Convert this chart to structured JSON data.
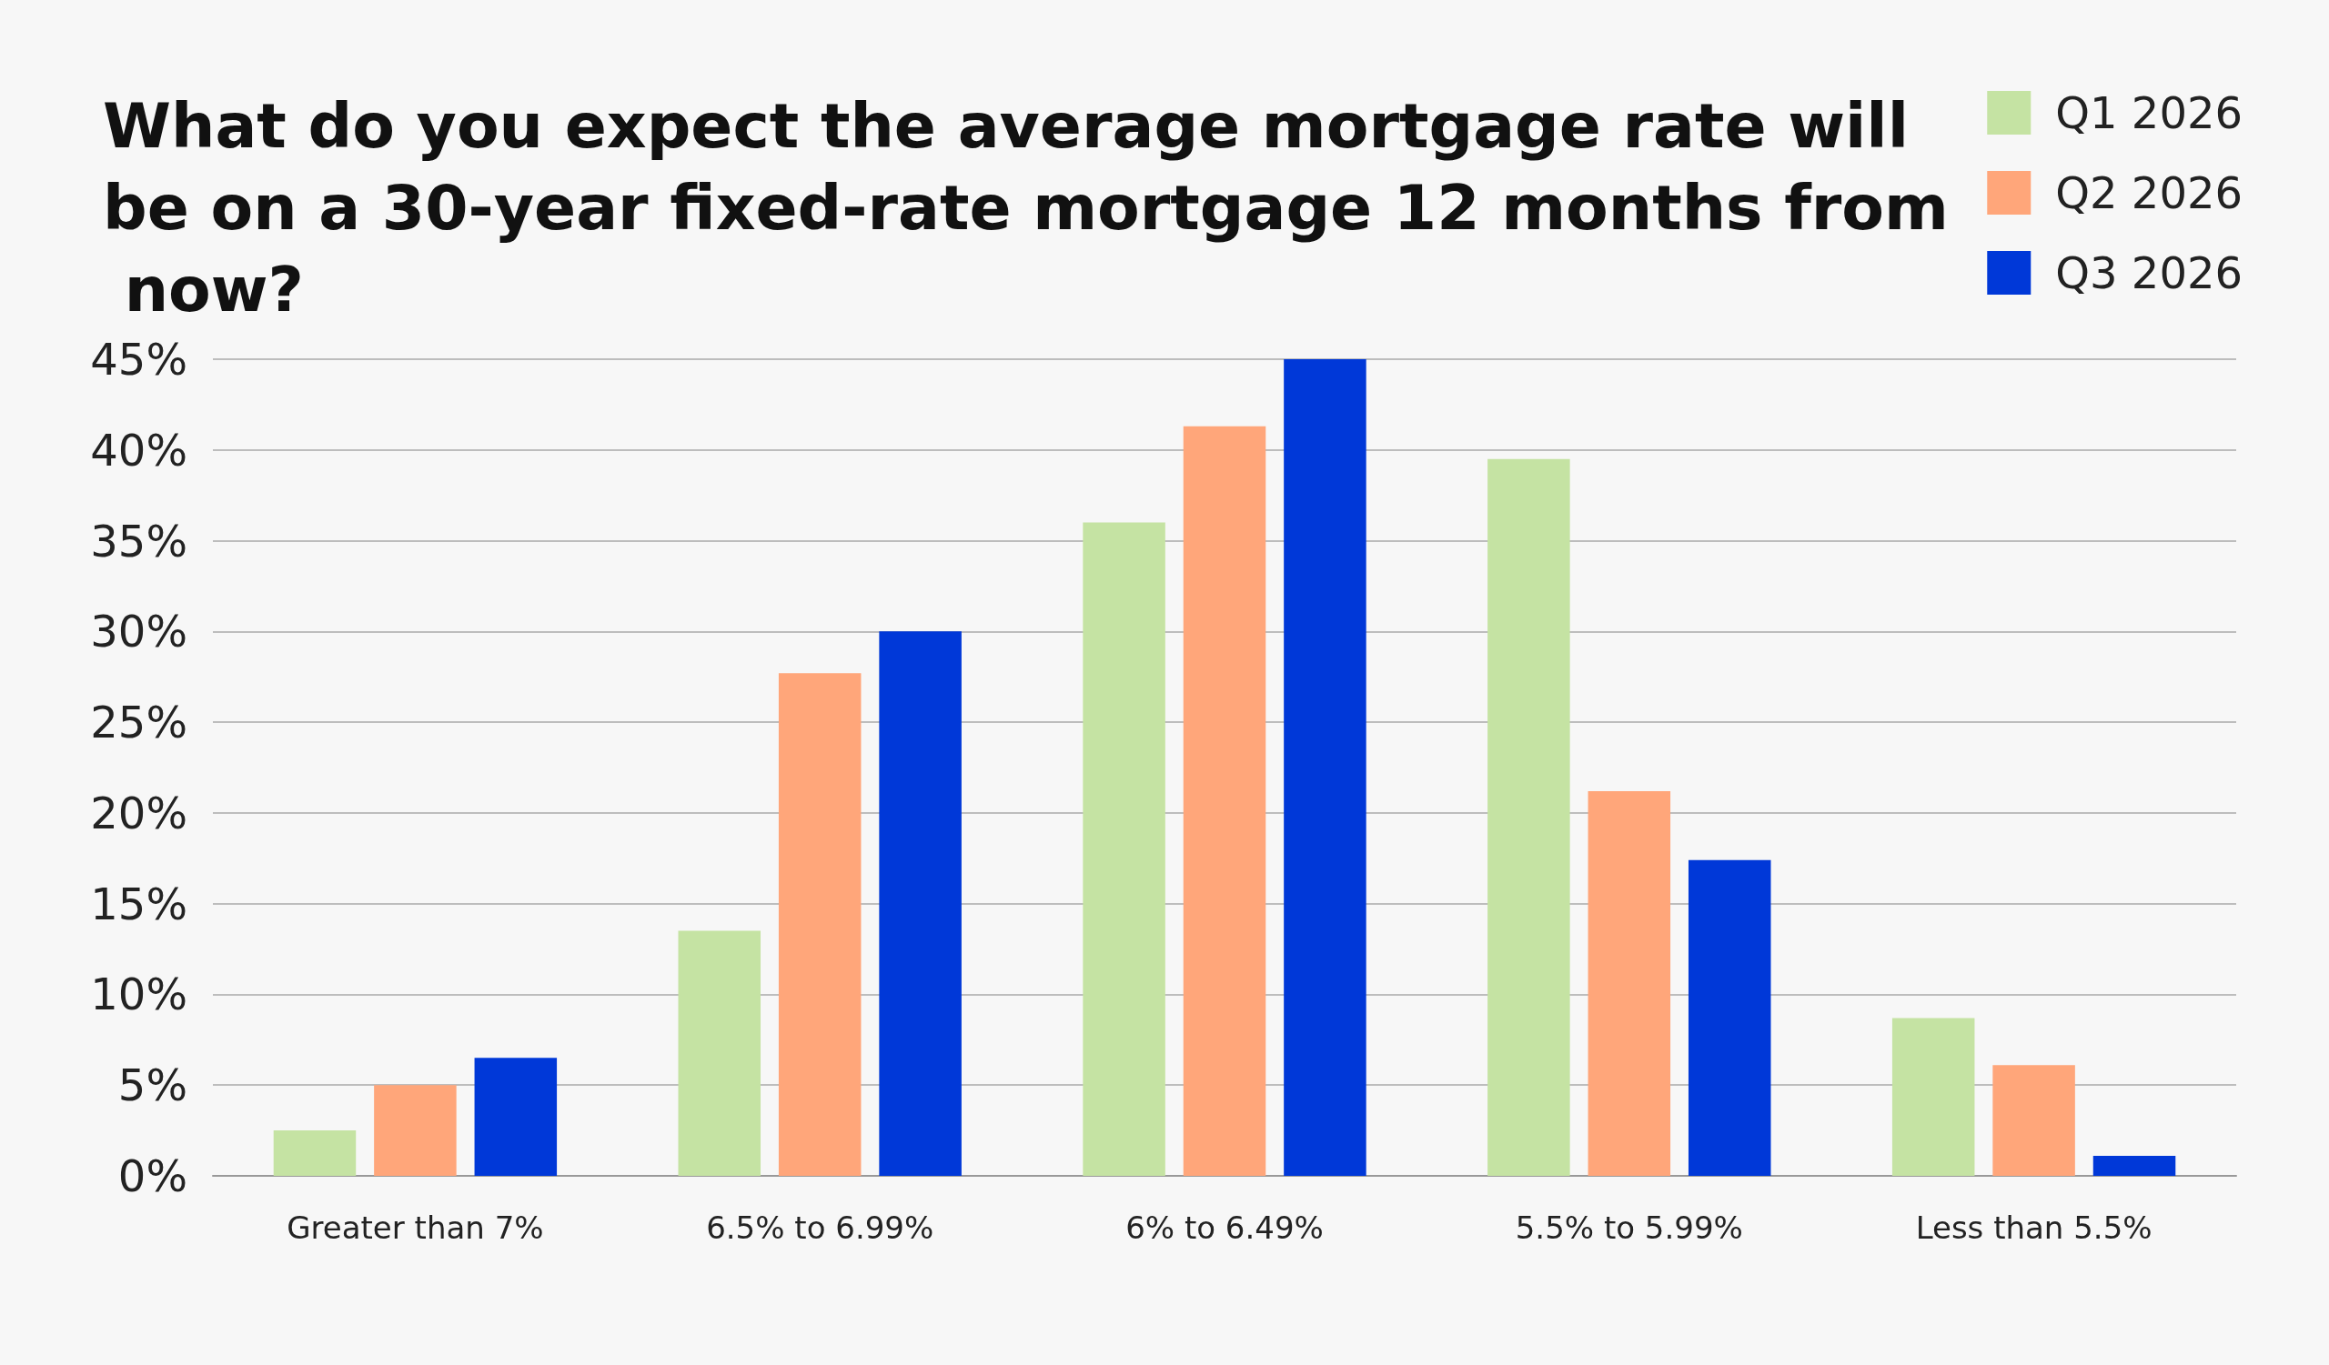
{
  "chart_data": {
    "type": "bar",
    "title": "What do you expect the average mortgage rate will be on a 30-year fixed-rate mortgage 12 months from now?",
    "categories": [
      "Greater than 7%",
      "6.5% to 6.99%",
      "6% to 6.49%",
      "5.5% to 5.99%",
      "Less than 5.5%"
    ],
    "series": [
      {
        "name": "Q1 2026",
        "color": "#c5e3a3",
        "values": [
          2.5,
          13.5,
          36.0,
          39.5,
          8.7
        ]
      },
      {
        "name": "Q2 2026",
        "color": "#ffa67a",
        "values": [
          5.0,
          27.7,
          41.3,
          21.2,
          6.1
        ]
      },
      {
        "name": "Q3 2026",
        "color": "#0038d8",
        "values": [
          6.5,
          30.0,
          45.0,
          17.4,
          1.1
        ]
      }
    ],
    "ylim": [
      0,
      45
    ],
    "yticks": [
      {
        "value": 0,
        "label": "0%"
      },
      {
        "value": 5,
        "label": "5%"
      },
      {
        "value": 10,
        "label": "10%"
      },
      {
        "value": 15,
        "label": "15%"
      },
      {
        "value": 20,
        "label": "20%"
      },
      {
        "value": 25,
        "label": "25%"
      },
      {
        "value": 30,
        "label": "30%"
      },
      {
        "value": 35,
        "label": "35%"
      },
      {
        "value": 40,
        "label": "40%"
      },
      {
        "value": 45,
        "label": "45%"
      }
    ],
    "grid": "y",
    "legend": "top right"
  }
}
